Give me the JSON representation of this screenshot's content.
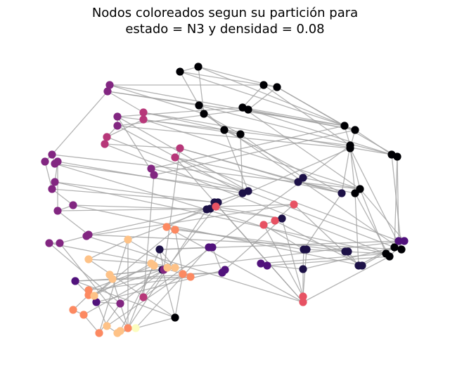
{
  "figure": {
    "title_line1": "Nodos coloreados segun su partición para",
    "title_line2": "estado = N3 y densidad = 0.08"
  },
  "chart_data": {
    "type": "network-graph",
    "palette": [
      "#000004",
      "#1d1147",
      "#51127c",
      "#822681",
      "#b73779",
      "#e75263",
      "#fc8961",
      "#fec287",
      "#fcfdbf"
    ],
    "nodes": [
      [
        256,
        102,
        0
      ],
      [
        282,
        95,
        0
      ],
      [
        375,
        121,
        0
      ],
      [
        394,
        124,
        0
      ],
      [
        283,
        150,
        0
      ],
      [
        290,
        162,
        0
      ],
      [
        345,
        153,
        0
      ],
      [
        353,
        156,
        0
      ],
      [
        319,
        185,
        0
      ],
      [
        342,
        191,
        0
      ],
      [
        490,
        179,
        0
      ],
      [
        505,
        185,
        0
      ],
      [
        498,
        207,
        0
      ],
      [
        498,
        211,
        0
      ],
      [
        557,
        220,
        0
      ],
      [
        565,
        223,
        0
      ],
      [
        512,
        269,
        0
      ],
      [
        505,
        275,
        0
      ],
      [
        571,
        355,
        0
      ],
      [
        561,
        352,
        0
      ],
      [
        549,
        361,
        0
      ],
      [
        554,
        365,
        0
      ],
      [
        249,
        452,
        0
      ],
      [
        431,
        253,
        1
      ],
      [
        424,
        259,
        1
      ],
      [
        486,
        275,
        1
      ],
      [
        353,
        272,
        1
      ],
      [
        345,
        275,
        1
      ],
      [
        305,
        288,
        1
      ],
      [
        310,
        288,
        1
      ],
      [
        294,
        298,
        1
      ],
      [
        299,
        297,
        1
      ],
      [
        401,
        311,
        1
      ],
      [
        227,
        355,
        1
      ],
      [
        231,
        384,
        1
      ],
      [
        431,
        383,
        1
      ],
      [
        432,
        355,
        1
      ],
      [
        436,
        355,
        1
      ],
      [
        491,
        358,
        1
      ],
      [
        495,
        358,
        1
      ],
      [
        510,
        378,
        1
      ],
      [
        515,
        378,
        1
      ],
      [
        567,
        343,
        2
      ],
      [
        575,
        343,
        2
      ],
      [
        297,
        352,
        2
      ],
      [
        302,
        352,
        2
      ],
      [
        371,
        375,
        2
      ],
      [
        380,
        378,
        2
      ],
      [
        316,
        388,
        2
      ],
      [
        320,
        384,
        2
      ],
      [
        107,
        400,
        2
      ],
      [
        137,
        430,
        2
      ],
      [
        215,
        240,
        3
      ],
      [
        219,
        249,
        3
      ],
      [
        153,
        130,
        3
      ],
      [
        156,
        121,
        3
      ],
      [
        167,
        166,
        3
      ],
      [
        167,
        179,
        3
      ],
      [
        74,
        220,
        3
      ],
      [
        64,
        230,
        3
      ],
      [
        78,
        233,
        3
      ],
      [
        82,
        230,
        3
      ],
      [
        78,
        259,
        3
      ],
      [
        74,
        269,
        3
      ],
      [
        104,
        292,
        3
      ],
      [
        82,
        300,
        3
      ],
      [
        126,
        334,
        3
      ],
      [
        123,
        336,
        3
      ],
      [
        85,
        346,
        3
      ],
      [
        70,
        346,
        3
      ],
      [
        171,
        432,
        3
      ],
      [
        233,
        384,
        3
      ],
      [
        204,
        160,
        4
      ],
      [
        204,
        170,
        4
      ],
      [
        152,
        195,
        4
      ],
      [
        149,
        205,
        4
      ],
      [
        256,
        211,
        4
      ],
      [
        249,
        224,
        4
      ],
      [
        204,
        423,
        4
      ],
      [
        307,
        294,
        5
      ],
      [
        418,
        291,
        5
      ],
      [
        391,
        314,
        5
      ],
      [
        375,
        320,
        5
      ],
      [
        431,
        422,
        5
      ],
      [
        431,
        430,
        5
      ],
      [
        237,
        323,
        6
      ],
      [
        249,
        327,
        6
      ],
      [
        260,
        390,
        6
      ],
      [
        271,
        394,
        6
      ],
      [
        126,
        413,
        6
      ],
      [
        126,
        420,
        6
      ],
      [
        104,
        441,
        6
      ],
      [
        119,
        448,
        6
      ],
      [
        141,
        474,
        6
      ],
      [
        182,
        467,
        6
      ],
      [
        182,
        341,
        7
      ],
      [
        126,
        369,
        7
      ],
      [
        215,
        375,
        7
      ],
      [
        219,
        378,
        7
      ],
      [
        238,
        381,
        7
      ],
      [
        249,
        381,
        7
      ],
      [
        156,
        391,
        7
      ],
      [
        160,
        397,
        7
      ],
      [
        134,
        421,
        7
      ],
      [
        152,
        464,
        7
      ],
      [
        167,
        474,
        7
      ],
      [
        171,
        471,
        7
      ],
      [
        193,
        467,
        8
      ]
    ],
    "edges": [
      [
        0,
        1
      ],
      [
        0,
        2
      ],
      [
        0,
        4
      ],
      [
        1,
        3
      ],
      [
        1,
        5
      ],
      [
        2,
        3
      ],
      [
        2,
        6
      ],
      [
        3,
        7
      ],
      [
        3,
        10
      ],
      [
        4,
        5
      ],
      [
        4,
        8
      ],
      [
        5,
        9
      ],
      [
        6,
        7
      ],
      [
        6,
        10
      ],
      [
        7,
        11
      ],
      [
        8,
        9
      ],
      [
        8,
        26
      ],
      [
        9,
        27
      ],
      [
        10,
        11
      ],
      [
        10,
        12
      ],
      [
        11,
        13
      ],
      [
        11,
        14
      ],
      [
        12,
        13
      ],
      [
        12,
        25
      ],
      [
        13,
        16
      ],
      [
        14,
        15
      ],
      [
        14,
        18
      ],
      [
        15,
        19
      ],
      [
        15,
        42
      ],
      [
        16,
        17
      ],
      [
        16,
        20
      ],
      [
        17,
        21
      ],
      [
        18,
        19
      ],
      [
        19,
        42
      ],
      [
        20,
        21
      ],
      [
        20,
        38
      ],
      [
        21,
        43
      ],
      [
        22,
        50
      ],
      [
        22,
        96
      ],
      [
        22,
        105
      ],
      [
        22,
        87
      ],
      [
        23,
        24
      ],
      [
        24,
        25
      ],
      [
        25,
        36
      ],
      [
        26,
        27
      ],
      [
        27,
        28
      ],
      [
        28,
        29
      ],
      [
        29,
        30
      ],
      [
        30,
        31
      ],
      [
        31,
        32
      ],
      [
        32,
        79
      ],
      [
        26,
        52
      ],
      [
        34,
        22
      ],
      [
        35,
        36
      ],
      [
        36,
        37
      ],
      [
        37,
        38
      ],
      [
        38,
        39
      ],
      [
        39,
        40
      ],
      [
        40,
        41
      ],
      [
        41,
        19
      ],
      [
        33,
        71
      ],
      [
        33,
        94
      ],
      [
        35,
        83
      ],
      [
        44,
        45
      ],
      [
        44,
        33
      ],
      [
        45,
        48
      ],
      [
        46,
        47
      ],
      [
        47,
        35
      ],
      [
        48,
        49
      ],
      [
        49,
        32
      ],
      [
        50,
        51
      ],
      [
        50,
        88
      ],
      [
        51,
        70
      ],
      [
        42,
        43
      ],
      [
        43,
        40
      ],
      [
        52,
        53
      ],
      [
        53,
        56
      ],
      [
        54,
        55
      ],
      [
        54,
        58
      ],
      [
        54,
        72
      ],
      [
        55,
        2
      ],
      [
        56,
        57
      ],
      [
        57,
        74
      ],
      [
        58,
        59
      ],
      [
        58,
        60
      ],
      [
        60,
        61
      ],
      [
        61,
        62
      ],
      [
        62,
        63
      ],
      [
        63,
        64
      ],
      [
        64,
        65
      ],
      [
        65,
        66
      ],
      [
        66,
        67
      ],
      [
        67,
        68
      ],
      [
        68,
        69
      ],
      [
        69,
        70
      ],
      [
        70,
        71
      ],
      [
        71,
        76
      ],
      [
        59,
        63
      ],
      [
        61,
        65
      ],
      [
        67,
        84
      ],
      [
        72,
        73
      ],
      [
        73,
        74
      ],
      [
        74,
        75
      ],
      [
        75,
        76
      ],
      [
        76,
        77
      ],
      [
        77,
        84
      ],
      [
        78,
        79
      ],
      [
        79,
        80
      ],
      [
        80,
        81
      ],
      [
        81,
        82
      ],
      [
        82,
        83
      ],
      [
        83,
        32
      ],
      [
        78,
        53
      ],
      [
        84,
        85
      ],
      [
        85,
        86
      ],
      [
        86,
        87
      ],
      [
        87,
        48
      ],
      [
        88,
        89
      ],
      [
        89,
        90
      ],
      [
        90,
        91
      ],
      [
        91,
        92
      ],
      [
        92,
        93
      ],
      [
        93,
        95
      ],
      [
        88,
        97
      ],
      [
        89,
        98
      ],
      [
        90,
        99
      ],
      [
        94,
        95
      ],
      [
        95,
        96
      ],
      [
        96,
        97
      ],
      [
        97,
        98
      ],
      [
        98,
        99
      ],
      [
        99,
        100
      ],
      [
        100,
        101
      ],
      [
        101,
        102
      ],
      [
        102,
        103
      ],
      [
        103,
        104
      ],
      [
        104,
        105
      ],
      [
        105,
        106
      ],
      [
        106,
        107
      ],
      [
        107,
        108
      ],
      [
        108,
        96
      ],
      [
        94,
        102
      ],
      [
        95,
        100
      ],
      [
        98,
        106
      ],
      [
        97,
        103
      ],
      [
        0,
        10
      ],
      [
        1,
        11
      ],
      [
        2,
        12
      ],
      [
        4,
        14
      ],
      [
        5,
        18
      ],
      [
        6,
        16
      ],
      [
        8,
        25
      ],
      [
        9,
        23
      ],
      [
        54,
        10
      ],
      [
        55,
        11
      ],
      [
        56,
        12
      ],
      [
        57,
        13
      ],
      [
        72,
        14
      ],
      [
        73,
        16
      ],
      [
        74,
        19
      ],
      [
        75,
        20
      ],
      [
        76,
        25
      ],
      [
        77,
        42
      ],
      [
        58,
        16
      ],
      [
        60,
        38
      ],
      [
        62,
        20
      ],
      [
        64,
        41
      ],
      [
        66,
        18
      ],
      [
        68,
        94
      ],
      [
        69,
        100
      ],
      [
        84,
        21
      ],
      [
        85,
        36
      ],
      [
        86,
        39
      ],
      [
        52,
        10
      ],
      [
        53,
        11
      ],
      [
        24,
        76
      ],
      [
        25,
        77
      ],
      [
        26,
        56
      ],
      [
        27,
        57
      ],
      [
        28,
        84
      ],
      [
        29,
        85
      ],
      [
        30,
        94
      ],
      [
        31,
        95
      ],
      [
        33,
        42
      ],
      [
        34,
        43
      ],
      [
        35,
        19
      ],
      [
        46,
        20
      ],
      [
        47,
        21
      ],
      [
        48,
        50
      ],
      [
        49,
        51
      ],
      [
        107,
        44
      ],
      [
        108,
        45
      ],
      [
        103,
        86
      ],
      [
        104,
        87
      ],
      [
        100,
        33
      ],
      [
        101,
        34
      ],
      [
        92,
        71
      ],
      [
        93,
        70
      ],
      [
        54,
        4
      ],
      [
        55,
        5
      ],
      [
        56,
        6
      ],
      [
        57,
        7
      ],
      [
        72,
        8
      ],
      [
        73,
        9
      ],
      [
        60,
        26
      ],
      [
        61,
        27
      ],
      [
        62,
        28
      ],
      [
        63,
        29
      ],
      [
        64,
        30
      ],
      [
        65,
        31
      ],
      [
        66,
        79
      ],
      [
        67,
        80
      ],
      [
        3,
        15
      ],
      [
        7,
        14
      ],
      [
        12,
        17
      ],
      [
        13,
        18
      ],
      [
        16,
        43
      ],
      [
        17,
        40
      ],
      [
        23,
        16
      ],
      [
        24,
        17
      ],
      [
        78,
        12
      ],
      [
        79,
        13
      ],
      [
        80,
        40
      ],
      [
        81,
        41
      ],
      [
        82,
        36
      ],
      [
        83,
        37
      ]
    ]
  }
}
